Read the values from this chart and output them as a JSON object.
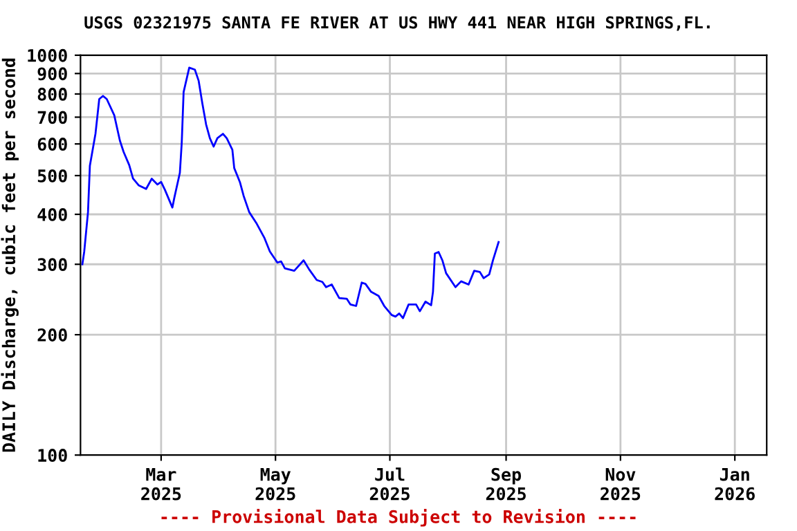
{
  "chart_data": {
    "type": "line",
    "title": "USGS 02321975 SANTA FE RIVER AT US HWY 441 NEAR HIGH SPRINGS,FL.",
    "ylabel": "DAILY Discharge, cubic feet per second",
    "annotations": [
      "---- Provisional Data Subject to Revision ----"
    ],
    "x": [
      "2025-01-18",
      "2025-01-19",
      "2025-01-21",
      "2025-01-22",
      "2025-01-25",
      "2025-01-27",
      "2025-01-29",
      "2025-01-31",
      "2025-02-04",
      "2025-02-07",
      "2025-02-09",
      "2025-02-12",
      "2025-02-14",
      "2025-02-17",
      "2025-02-21",
      "2025-02-24",
      "2025-02-27",
      "2025-03-01",
      "2025-03-03",
      "2025-03-07",
      "2025-03-08",
      "2025-03-11",
      "2025-03-12",
      "2025-03-13",
      "2025-03-16",
      "2025-03-19",
      "2025-03-21",
      "2025-03-23",
      "2025-03-25",
      "2025-03-27",
      "2025-03-29",
      "2025-03-31",
      "2025-04-03",
      "2025-04-05",
      "2025-04-08",
      "2025-04-09",
      "2025-04-12",
      "2025-04-14",
      "2025-04-17",
      "2025-04-21",
      "2025-04-25",
      "2025-04-28",
      "2025-05-02",
      "2025-05-04",
      "2025-05-06",
      "2025-05-11",
      "2025-05-16",
      "2025-05-19",
      "2025-05-23",
      "2025-05-26",
      "2025-05-28",
      "2025-05-31",
      "2025-06-04",
      "2025-06-08",
      "2025-06-10",
      "2025-06-13",
      "2025-06-16",
      "2025-06-18",
      "2025-06-21",
      "2025-06-25",
      "2025-06-28",
      "2025-07-02",
      "2025-07-04",
      "2025-07-06",
      "2025-07-08",
      "2025-07-11",
      "2025-07-15",
      "2025-07-17",
      "2025-07-20",
      "2025-07-23",
      "2025-07-24",
      "2025-07-25",
      "2025-07-27",
      "2025-07-29",
      "2025-07-31",
      "2025-08-05",
      "2025-08-08",
      "2025-08-12",
      "2025-08-15",
      "2025-08-18",
      "2025-08-20",
      "2025-08-23",
      "2025-08-25",
      "2025-08-28"
    ],
    "series": [
      {
        "color": "#0000ff",
        "values": [
          300,
          323,
          405,
          529,
          637,
          777,
          791,
          777,
          708,
          612,
          573,
          531,
          492,
          473,
          463,
          491,
          475,
          482,
          461,
          416,
          439,
          508,
          604,
          809,
          931,
          920,
          864,
          757,
          671,
          620,
          591,
          620,
          636,
          620,
          580,
          522,
          482,
          445,
          405,
          379,
          350,
          323,
          303,
          305,
          293,
          289,
          307,
          291,
          274,
          271,
          263,
          267,
          247,
          246,
          238,
          236,
          270,
          268,
          256,
          250,
          236,
          224,
          222,
          226,
          220,
          238,
          238,
          229,
          242,
          237,
          256,
          319,
          322,
          307,
          285,
          263,
          272,
          267,
          289,
          287,
          277,
          283,
          307,
          341
        ]
      }
    ],
    "xlim": [
      "2025-01-17",
      "2026-01-18"
    ],
    "xticks": [
      {
        "value": "2025-03-01",
        "label": "Mar\n2025"
      },
      {
        "value": "2025-05-01",
        "label": "May\n2025"
      },
      {
        "value": "2025-07-01",
        "label": "Jul\n2025"
      },
      {
        "value": "2025-09-01",
        "label": "Sep\n2025"
      },
      {
        "value": "2025-11-01",
        "label": "Nov\n2025"
      },
      {
        "value": "2026-01-01",
        "label": "Jan\n2026"
      }
    ],
    "ylim": [
      100,
      1000
    ],
    "yticks": [
      100,
      200,
      300,
      400,
      500,
      600,
      700,
      800,
      900,
      1000
    ],
    "log": "y",
    "grid": true,
    "marker": "none",
    "line_style": "solid"
  }
}
